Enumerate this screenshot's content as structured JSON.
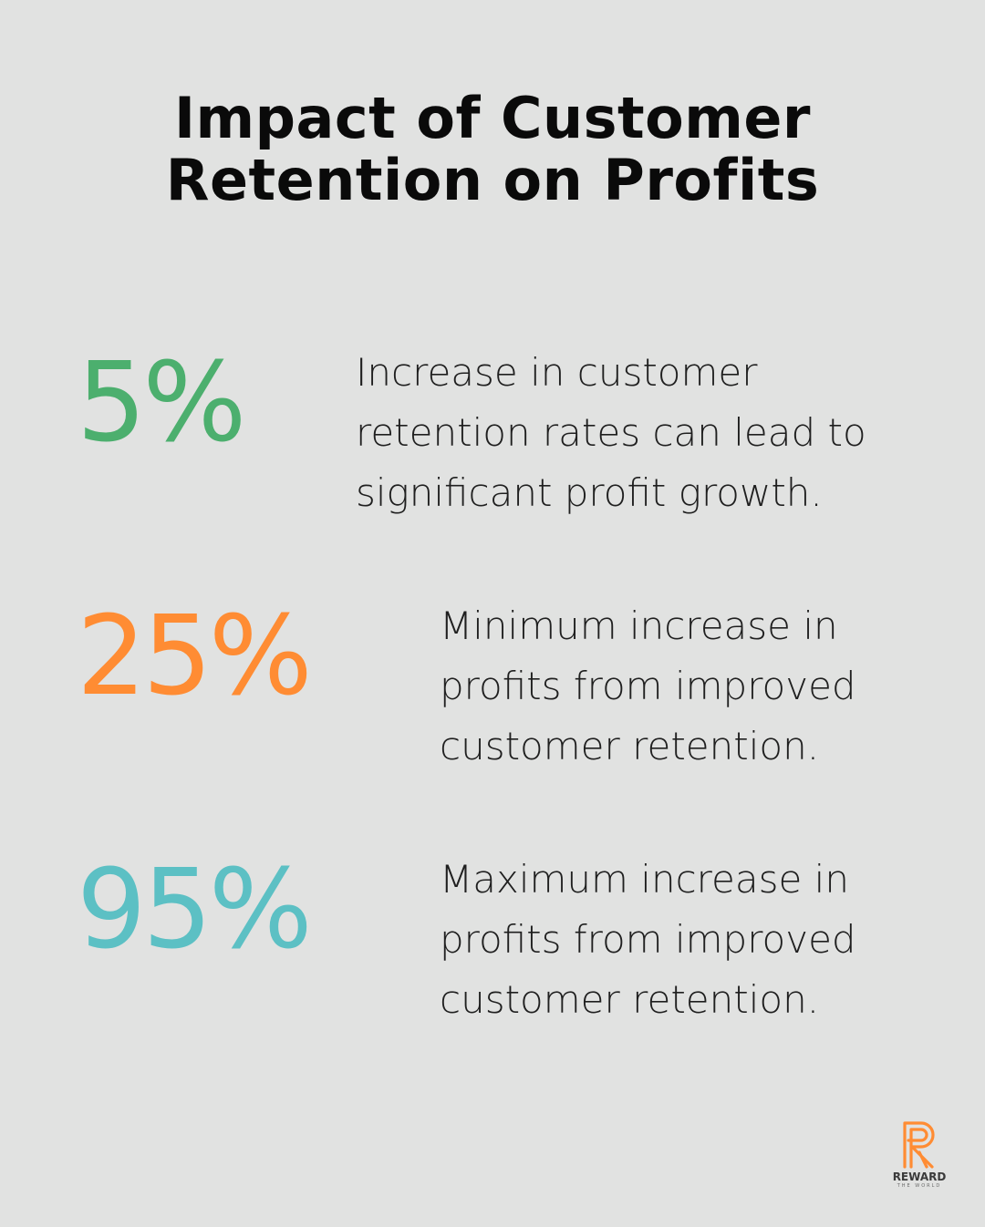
{
  "title": {
    "line1": "Impact of Customer",
    "line2": "Retention on Profits"
  },
  "stats": [
    {
      "value": "5%",
      "color": "#4caf6e",
      "description": "Increase in customer retention rates can lead to significant profit growth."
    },
    {
      "value": "25%",
      "color": "#ff8c33",
      "description": "Minimum increase in profits from improved customer retention."
    },
    {
      "value": "95%",
      "color": "#5cc0c4",
      "description": "Maximum increase in profits from improved customer retention."
    }
  ],
  "brand": {
    "name": "REWARD",
    "tagline": "THE WORLD",
    "icon": "reward-r-logo-icon",
    "color": "#ff8c33"
  }
}
